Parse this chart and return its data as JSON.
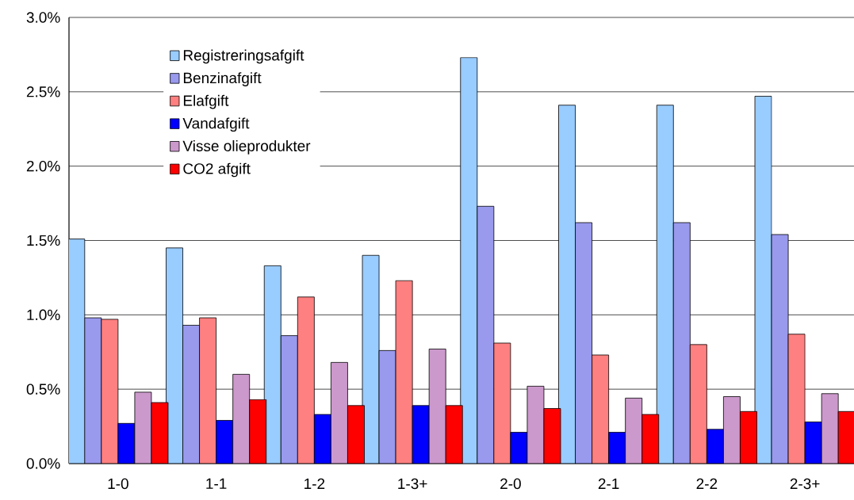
{
  "chart_data": {
    "type": "bar",
    "categories": [
      "1-0",
      "1-1",
      "1-2",
      "1-3+",
      "2-0",
      "2-1",
      "2-2",
      "2-3+"
    ],
    "series": [
      {
        "name": "Registreringsafgift",
        "color": "#99ccff",
        "values": [
          1.51,
          1.45,
          1.33,
          1.4,
          2.73,
          2.41,
          2.41,
          2.47
        ]
      },
      {
        "name": "Benzinafgift",
        "color": "#9999ee",
        "values": [
          0.98,
          0.93,
          0.86,
          0.76,
          1.73,
          1.62,
          1.62,
          1.54
        ]
      },
      {
        "name": "Elafgift",
        "color": "#ff8080",
        "values": [
          0.97,
          0.98,
          1.12,
          1.23,
          0.81,
          0.73,
          0.8,
          0.87
        ]
      },
      {
        "name": "Vandafgift",
        "color": "#0000ff",
        "values": [
          0.27,
          0.29,
          0.33,
          0.39,
          0.21,
          0.21,
          0.23,
          0.28
        ]
      },
      {
        "name": "Visse olieprodukter",
        "color": "#cc99cc",
        "values": [
          0.48,
          0.6,
          0.68,
          0.77,
          0.52,
          0.44,
          0.45,
          0.47
        ]
      },
      {
        "name": "CO2 afgift",
        "color": "#ff0000",
        "values": [
          0.41,
          0.43,
          0.39,
          0.39,
          0.37,
          0.33,
          0.35,
          0.35
        ]
      }
    ],
    "ylim": [
      0,
      3.0
    ],
    "yticks": [
      {
        "value": 0,
        "label": "0.0%"
      },
      {
        "value": 0.5,
        "label": "0.5%"
      },
      {
        "value": 1.0,
        "label": "1.0%"
      },
      {
        "value": 1.5,
        "label": "1.5%"
      },
      {
        "value": 2.0,
        "label": "2.0%"
      },
      {
        "value": 2.5,
        "label": "2.5%"
      },
      {
        "value": 3.0,
        "label": "3.0%"
      }
    ],
    "grid": "y",
    "legend": "top left"
  }
}
